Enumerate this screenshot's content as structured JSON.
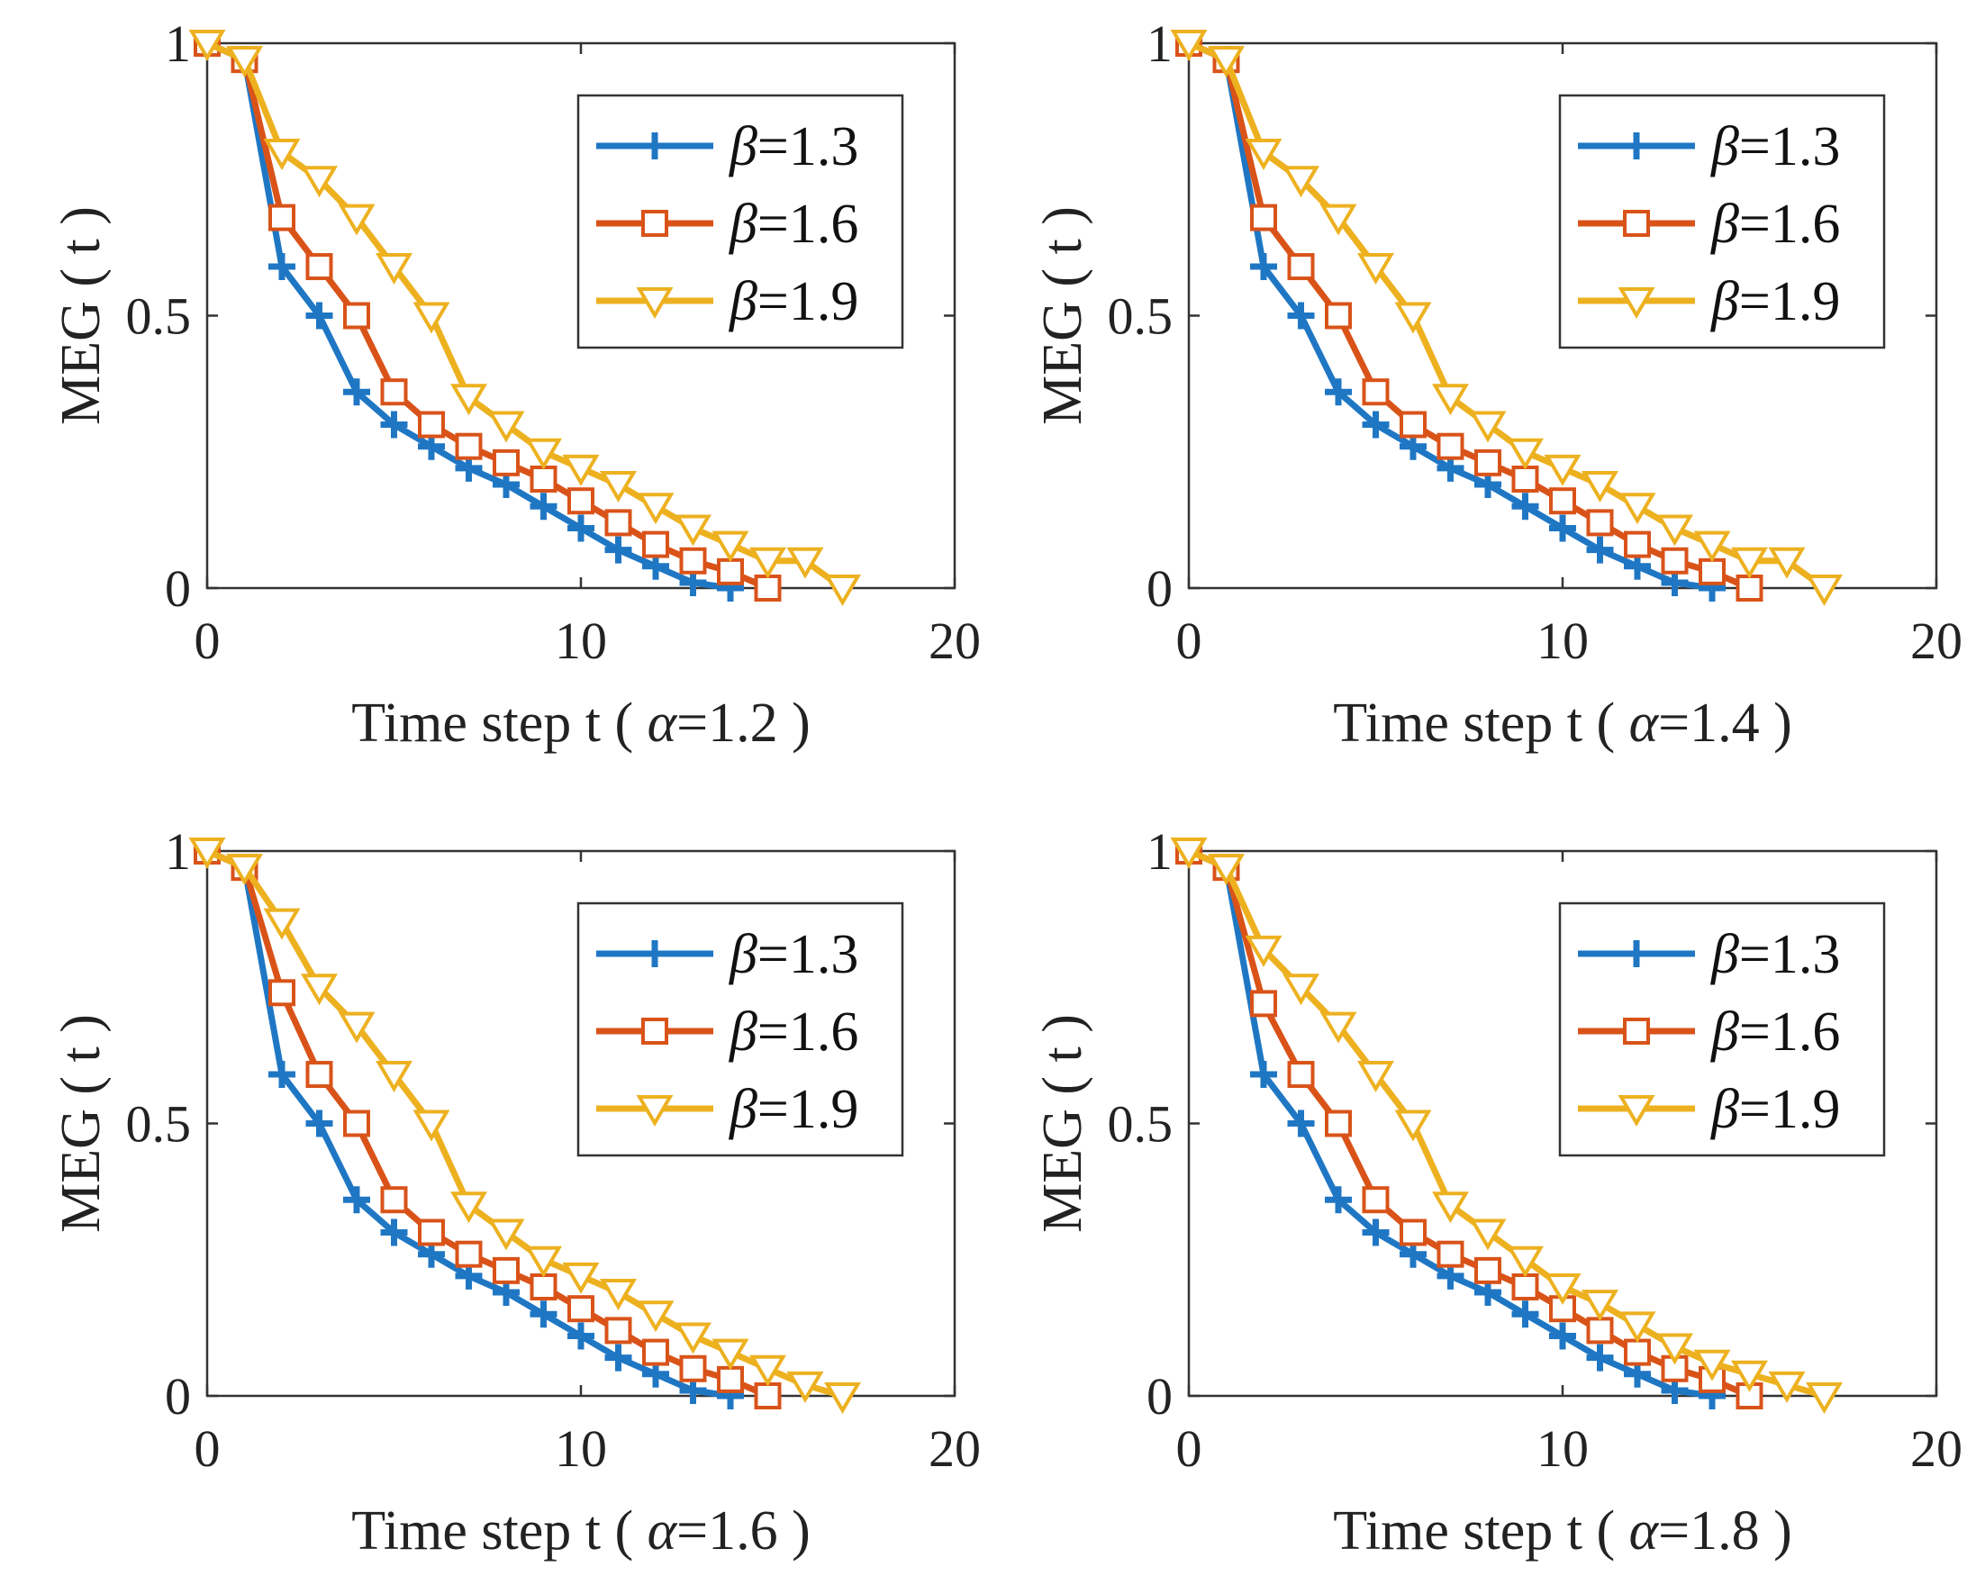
{
  "chart_data": [
    {
      "type": "line",
      "xlabel_prefix": "Time step t ( ",
      "alpha_symbol": "α",
      "alpha_value": "=1.2",
      "xlabel_suffix": " )",
      "ylabel": "MEG ( t )",
      "xlim": [
        0,
        20
      ],
      "ylim": [
        0,
        1
      ],
      "xticks": [
        0,
        10,
        20
      ],
      "yticks": [
        0,
        0.5,
        1
      ],
      "xtick_labels": [
        "0",
        "10",
        "20"
      ],
      "ytick_labels": [
        "0",
        "0.5",
        "1"
      ],
      "legend_position": "top-right",
      "series": [
        {
          "name": "=1.3",
          "symbol": "β",
          "color": "#1f77c4",
          "marker": "plus",
          "x": [
            0,
            1,
            2,
            3,
            4,
            5,
            6,
            7,
            8,
            9,
            10,
            11,
            12,
            13,
            14
          ],
          "values": [
            1.0,
            0.97,
            0.59,
            0.5,
            0.36,
            0.3,
            0.26,
            0.22,
            0.19,
            0.15,
            0.11,
            0.07,
            0.04,
            0.01,
            0.0
          ]
        },
        {
          "name": "=1.6",
          "symbol": "β",
          "color": "#d95319",
          "marker": "square",
          "x": [
            0,
            1,
            2,
            3,
            4,
            5,
            6,
            7,
            8,
            9,
            10,
            11,
            12,
            13,
            14,
            15
          ],
          "values": [
            1.0,
            0.97,
            0.68,
            0.59,
            0.5,
            0.36,
            0.3,
            0.26,
            0.23,
            0.2,
            0.16,
            0.12,
            0.08,
            0.05,
            0.03,
            0.0
          ]
        },
        {
          "name": "=1.9",
          "symbol": "β",
          "color": "#edb120",
          "marker": "triangle-down",
          "x": [
            0,
            1,
            2,
            3,
            4,
            5,
            6,
            7,
            8,
            9,
            10,
            11,
            12,
            13,
            14,
            15,
            16,
            17
          ],
          "values": [
            1.0,
            0.97,
            0.8,
            0.75,
            0.68,
            0.59,
            0.5,
            0.35,
            0.3,
            0.25,
            0.22,
            0.19,
            0.15,
            0.11,
            0.08,
            0.05,
            0.05,
            0.0
          ]
        }
      ]
    },
    {
      "type": "line",
      "xlabel_prefix": "Time step t ( ",
      "alpha_symbol": "α",
      "alpha_value": "=1.4",
      "xlabel_suffix": " )",
      "ylabel": "MEG ( t )",
      "xlim": [
        0,
        20
      ],
      "ylim": [
        0,
        1
      ],
      "xticks": [
        0,
        10,
        20
      ],
      "yticks": [
        0,
        0.5,
        1
      ],
      "xtick_labels": [
        "0",
        "10",
        "20"
      ],
      "ytick_labels": [
        "0",
        "0.5",
        "1"
      ],
      "legend_position": "top-right",
      "series": [
        {
          "name": "=1.3",
          "symbol": "β",
          "color": "#1f77c4",
          "marker": "plus",
          "x": [
            0,
            1,
            2,
            3,
            4,
            5,
            6,
            7,
            8,
            9,
            10,
            11,
            12,
            13,
            14
          ],
          "values": [
            1.0,
            0.97,
            0.59,
            0.5,
            0.36,
            0.3,
            0.26,
            0.22,
            0.19,
            0.15,
            0.11,
            0.07,
            0.04,
            0.01,
            0.0
          ]
        },
        {
          "name": "=1.6",
          "symbol": "β",
          "color": "#d95319",
          "marker": "square",
          "x": [
            0,
            1,
            2,
            3,
            4,
            5,
            6,
            7,
            8,
            9,
            10,
            11,
            12,
            13,
            14,
            15
          ],
          "values": [
            1.0,
            0.97,
            0.68,
            0.59,
            0.5,
            0.36,
            0.3,
            0.26,
            0.23,
            0.2,
            0.16,
            0.12,
            0.08,
            0.05,
            0.03,
            0.0
          ]
        },
        {
          "name": "=1.9",
          "symbol": "β",
          "color": "#edb120",
          "marker": "triangle-down",
          "x": [
            0,
            1,
            2,
            3,
            4,
            5,
            6,
            7,
            8,
            9,
            10,
            11,
            12,
            13,
            14,
            15,
            16,
            17
          ],
          "values": [
            1.0,
            0.97,
            0.8,
            0.75,
            0.68,
            0.59,
            0.5,
            0.35,
            0.3,
            0.25,
            0.22,
            0.19,
            0.15,
            0.11,
            0.08,
            0.05,
            0.05,
            0.0
          ]
        }
      ]
    },
    {
      "type": "line",
      "xlabel_prefix": "Time step t ( ",
      "alpha_symbol": "α",
      "alpha_value": "=1.6",
      "xlabel_suffix": " )",
      "ylabel": "MEG ( t )",
      "xlim": [
        0,
        20
      ],
      "ylim": [
        0,
        1
      ],
      "xticks": [
        0,
        10,
        20
      ],
      "yticks": [
        0,
        0.5,
        1
      ],
      "xtick_labels": [
        "0",
        "10",
        "20"
      ],
      "ytick_labels": [
        "0",
        "0.5",
        "1"
      ],
      "legend_position": "top-right",
      "series": [
        {
          "name": "=1.3",
          "symbol": "β",
          "color": "#1f77c4",
          "marker": "plus",
          "x": [
            0,
            1,
            2,
            3,
            4,
            5,
            6,
            7,
            8,
            9,
            10,
            11,
            12,
            13,
            14
          ],
          "values": [
            1.0,
            0.97,
            0.59,
            0.5,
            0.36,
            0.3,
            0.26,
            0.22,
            0.19,
            0.15,
            0.11,
            0.07,
            0.04,
            0.01,
            0.0
          ]
        },
        {
          "name": "=1.6",
          "symbol": "β",
          "color": "#d95319",
          "marker": "square",
          "x": [
            0,
            1,
            2,
            3,
            4,
            5,
            6,
            7,
            8,
            9,
            10,
            11,
            12,
            13,
            14,
            15
          ],
          "values": [
            1.0,
            0.97,
            0.74,
            0.59,
            0.5,
            0.36,
            0.3,
            0.26,
            0.23,
            0.2,
            0.16,
            0.12,
            0.08,
            0.05,
            0.03,
            0.0
          ]
        },
        {
          "name": "=1.9",
          "symbol": "β",
          "color": "#edb120",
          "marker": "triangle-down",
          "x": [
            0,
            1,
            2,
            3,
            4,
            5,
            6,
            7,
            8,
            9,
            10,
            11,
            12,
            13,
            14,
            15,
            16,
            17
          ],
          "values": [
            1.0,
            0.97,
            0.87,
            0.75,
            0.68,
            0.59,
            0.5,
            0.35,
            0.3,
            0.25,
            0.22,
            0.19,
            0.15,
            0.11,
            0.08,
            0.05,
            0.02,
            0.0
          ]
        }
      ]
    },
    {
      "type": "line",
      "xlabel_prefix": "Time step t ( ",
      "alpha_symbol": "α",
      "alpha_value": "=1.8",
      "xlabel_suffix": " )",
      "ylabel": "MEG ( t )",
      "xlim": [
        0,
        20
      ],
      "ylim": [
        0,
        1
      ],
      "xticks": [
        0,
        10,
        20
      ],
      "yticks": [
        0,
        0.5,
        1
      ],
      "xtick_labels": [
        "0",
        "10",
        "20"
      ],
      "ytick_labels": [
        "0",
        "0.5",
        "1"
      ],
      "legend_position": "top-right",
      "series": [
        {
          "name": "=1.3",
          "symbol": "β",
          "color": "#1f77c4",
          "marker": "plus",
          "x": [
            0,
            1,
            2,
            3,
            4,
            5,
            6,
            7,
            8,
            9,
            10,
            11,
            12,
            13,
            14
          ],
          "values": [
            1.0,
            0.97,
            0.59,
            0.5,
            0.36,
            0.3,
            0.26,
            0.22,
            0.19,
            0.15,
            0.11,
            0.07,
            0.04,
            0.01,
            0.0
          ]
        },
        {
          "name": "=1.6",
          "symbol": "β",
          "color": "#d95319",
          "marker": "square",
          "x": [
            0,
            1,
            2,
            3,
            4,
            5,
            6,
            7,
            8,
            9,
            10,
            11,
            12,
            13,
            14,
            15
          ],
          "values": [
            1.0,
            0.97,
            0.72,
            0.59,
            0.5,
            0.36,
            0.3,
            0.26,
            0.23,
            0.2,
            0.16,
            0.12,
            0.08,
            0.05,
            0.03,
            0.0
          ]
        },
        {
          "name": "=1.9",
          "symbol": "β",
          "color": "#edb120",
          "marker": "triangle-down",
          "x": [
            0,
            1,
            2,
            3,
            4,
            5,
            6,
            7,
            8,
            9,
            10,
            11,
            12,
            13,
            14,
            15,
            16,
            17
          ],
          "values": [
            1.0,
            0.97,
            0.82,
            0.75,
            0.68,
            0.59,
            0.5,
            0.35,
            0.3,
            0.25,
            0.2,
            0.17,
            0.13,
            0.09,
            0.06,
            0.04,
            0.02,
            0.0
          ]
        }
      ]
    }
  ]
}
